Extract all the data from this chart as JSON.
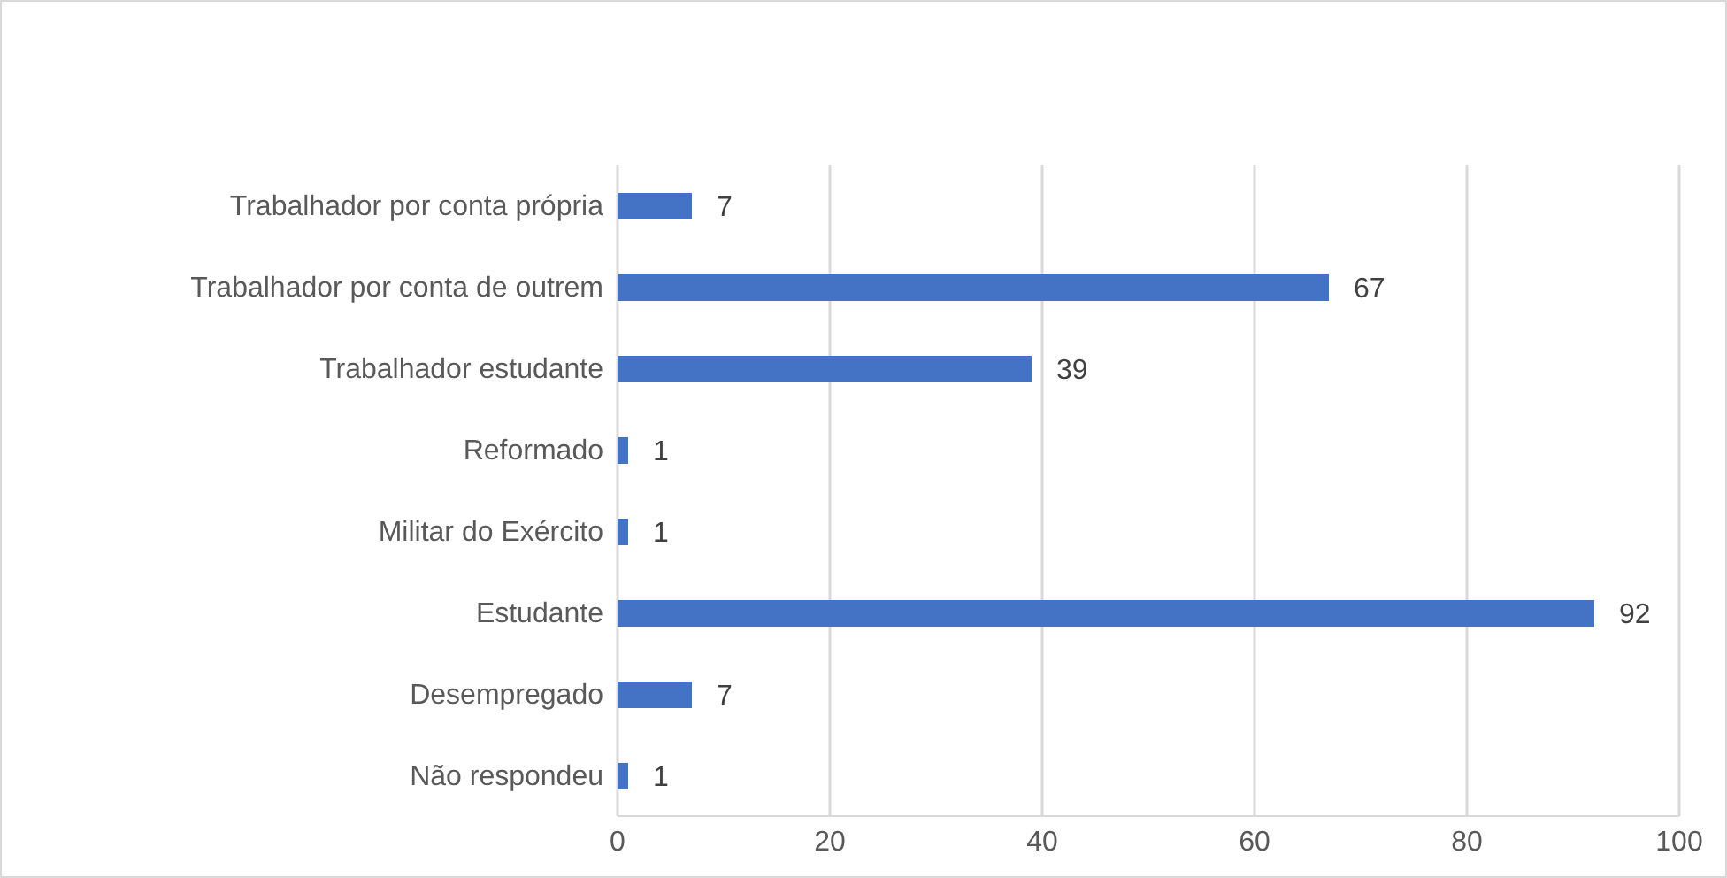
{
  "chart_data": {
    "type": "bar",
    "orientation": "horizontal",
    "categories": [
      "Trabalhador por conta própria",
      "Trabalhador por conta de outrem",
      "Trabalhador estudante",
      "Reformado",
      "Militar do Exército",
      "Estudante",
      "Desempregado",
      "Não respondeu"
    ],
    "values": [
      7,
      67,
      39,
      1,
      1,
      92,
      7,
      1
    ],
    "color": "#4472c4",
    "xlim": [
      0,
      100
    ],
    "xticks": [
      0,
      20,
      40,
      60,
      80,
      100
    ],
    "grid": "x",
    "data_labels": true
  }
}
